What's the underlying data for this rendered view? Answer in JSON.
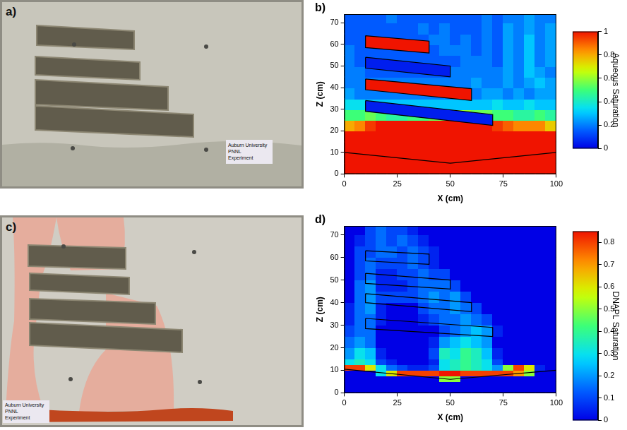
{
  "photos": [
    {
      "letter": "a)",
      "caption": [
        "Auburn University",
        "PNNL",
        "Experiment"
      ]
    },
    {
      "letter": "c)",
      "caption": [
        "Auburn University",
        "PNNL",
        "Experiment"
      ]
    }
  ],
  "chart_data": [
    {
      "type": "heatmap",
      "letter": "b)",
      "x_label": "X (cm)",
      "y_label": "Z (cm)",
      "xlim": [
        0,
        100
      ],
      "xticks": [
        0,
        25,
        50,
        75,
        100
      ],
      "ylim": [
        0,
        74
      ],
      "yticks": [
        0,
        10,
        20,
        30,
        40,
        50,
        60,
        70
      ],
      "colorbar": {
        "label": "Aqueous Saturation",
        "range": [
          0,
          1
        ],
        "ticks": [
          0,
          0.2,
          0.4,
          0.6,
          0.8,
          1
        ]
      },
      "cells": {
        "x_edges": [
          0,
          5,
          10,
          15,
          20,
          25,
          30,
          35,
          40,
          45,
          50,
          55,
          60,
          65,
          70,
          75,
          80,
          85,
          90,
          95,
          100
        ],
        "z_edges": [
          0,
          5,
          10,
          15,
          20,
          25,
          30,
          35,
          40,
          45,
          50,
          55,
          60,
          65,
          70,
          75
        ],
        "values": [
          [
            1,
            1,
            1,
            1,
            1,
            1,
            1,
            1,
            1,
            1,
            1,
            1,
            1,
            1,
            1,
            1,
            1,
            1,
            1,
            1
          ],
          [
            1,
            1,
            1,
            1,
            1,
            1,
            1,
            1,
            1,
            1,
            1,
            1,
            1,
            1,
            1,
            1,
            1,
            1,
            1,
            1
          ],
          [
            1,
            1,
            1,
            1,
            1,
            1,
            1,
            1,
            1,
            1,
            1,
            1,
            1,
            1,
            1,
            1,
            1,
            1,
            1,
            1
          ],
          [
            1,
            1,
            1,
            1,
            1,
            1,
            1,
            1,
            1,
            1,
            1,
            1,
            1,
            1,
            1,
            1,
            1,
            1,
            1,
            1
          ],
          [
            0.8,
            0.85,
            0.95,
            1,
            1,
            1,
            1,
            1,
            1,
            1,
            1,
            1,
            1,
            1,
            0.95,
            0.9,
            0.85,
            0.85,
            0.85,
            0.75
          ],
          [
            0.5,
            0.5,
            0.55,
            0.5,
            0.45,
            0.45,
            0.5,
            0.5,
            0.55,
            0.55,
            0.6,
            0.6,
            0.55,
            0.55,
            0.5,
            0.5,
            0.45,
            0.45,
            0.5,
            0.45
          ],
          [
            0.35,
            0.35,
            0.3,
            0.3,
            0.3,
            0.3,
            0.3,
            0.3,
            0.3,
            0.3,
            0.3,
            0.3,
            0.3,
            0.3,
            0.35,
            0.3,
            0.3,
            0.35,
            0.3,
            0.3
          ],
          [
            0.25,
            0.2,
            0.2,
            0.2,
            0.2,
            0.2,
            0.2,
            0.2,
            0.2,
            0.2,
            0.2,
            0.2,
            0.2,
            0.25,
            0.25,
            0.2,
            0.25,
            0.2,
            0.25,
            0.25
          ],
          [
            0.2,
            0.2,
            0.2,
            0.2,
            0.2,
            0.2,
            0.2,
            0.2,
            0.2,
            0.2,
            0.2,
            0.2,
            0.25,
            0.2,
            0.2,
            0.25,
            0.2,
            0.25,
            0.3,
            0.25
          ],
          [
            0.2,
            0.2,
            0.15,
            0.15,
            0.15,
            0.15,
            0.15,
            0.15,
            0.15,
            0.15,
            0.2,
            0.2,
            0.2,
            0.2,
            0.2,
            0.25,
            0.2,
            0.3,
            0.25,
            0.2
          ],
          [
            0.2,
            0.15,
            0.15,
            0.15,
            0.15,
            0.15,
            0.15,
            0.15,
            0.15,
            0.15,
            0.15,
            0.2,
            0.2,
            0.2,
            0.15,
            0.25,
            0.2,
            0.3,
            0.2,
            0.25
          ],
          [
            0.2,
            0.15,
            0.15,
            0.15,
            0.15,
            0.15,
            0.15,
            0.15,
            0.15,
            0.2,
            0.2,
            0.2,
            0.15,
            0.2,
            0.15,
            0.25,
            0.2,
            0.3,
            0.2,
            0.25
          ],
          [
            0.15,
            0.15,
            0.15,
            0.15,
            0.15,
            0.15,
            0.15,
            0.15,
            0.2,
            0.2,
            0.15,
            0.2,
            0.15,
            0.2,
            0.15,
            0.25,
            0.2,
            0.3,
            0.2,
            0.25
          ],
          [
            0.15,
            0.15,
            0.15,
            0.15,
            0.15,
            0.15,
            0.15,
            0.2,
            0.15,
            0.2,
            0.15,
            0.15,
            0.15,
            0.2,
            0.15,
            0.25,
            0.2,
            0.25,
            0.2,
            0.25
          ],
          [
            0.15,
            0.15,
            0.15,
            0.15,
            0.2,
            0.15,
            0.15,
            0.15,
            0.15,
            0.15,
            0.15,
            0.15,
            0.15,
            0.2,
            0.15,
            0.2,
            0.2,
            0.25,
            0.2,
            0.2
          ]
        ]
      },
      "lenses": [
        {
          "outline": [
            [
              10,
              64
            ],
            [
              40,
              61.5
            ],
            [
              40,
              56
            ],
            [
              10,
              58.5
            ]
          ],
          "value": 1
        },
        {
          "outline": [
            [
              10,
              54
            ],
            [
              50,
              50
            ],
            [
              50,
              45
            ],
            [
              10,
              49
            ]
          ],
          "value": 0.05
        },
        {
          "outline": [
            [
              10,
              44
            ],
            [
              60,
              39.5
            ],
            [
              60,
              34
            ],
            [
              10,
              39
            ]
          ],
          "value": 1
        },
        {
          "outline": [
            [
              10,
              34
            ],
            [
              70,
              27.5
            ],
            [
              70,
              22.5
            ],
            [
              10,
              29
            ]
          ],
          "value": 0.05
        }
      ],
      "bottom_line": [
        [
          0,
          10
        ],
        [
          50,
          5
        ],
        [
          100,
          10
        ]
      ]
    },
    {
      "type": "heatmap",
      "letter": "d)",
      "x_label": "X (cm)",
      "y_label": "Z (cm)",
      "xlim": [
        0,
        100
      ],
      "xticks": [
        0,
        25,
        50,
        75,
        100
      ],
      "ylim": [
        0,
        74
      ],
      "yticks": [
        0,
        10,
        20,
        30,
        40,
        50,
        60,
        70
      ],
      "colorbar": {
        "label": "DNAPL Saturation",
        "range": [
          0,
          0.85
        ],
        "ticks": [
          0,
          0.1,
          0.2,
          0.3,
          0.4,
          0.5,
          0.6,
          0.7,
          0.8
        ]
      },
      "cells": {
        "x_edges": [
          0,
          5,
          10,
          15,
          20,
          25,
          30,
          35,
          40,
          45,
          50,
          55,
          60,
          65,
          70,
          75,
          80,
          85,
          90,
          95,
          100
        ],
        "z_edges": [
          0,
          5,
          7.5,
          10,
          12.5,
          15,
          20,
          25,
          30,
          35,
          40,
          45,
          50,
          55,
          60,
          65,
          70,
          75
        ],
        "values": [
          [
            0,
            0,
            0,
            0,
            0,
            0,
            0,
            0,
            0,
            0,
            0,
            0,
            0,
            0,
            0,
            0,
            0,
            0,
            0,
            0
          ],
          [
            0,
            0,
            0,
            0,
            0,
            0,
            0,
            0,
            0,
            0.5,
            0.5,
            0,
            0,
            0,
            0,
            0,
            0,
            0,
            0,
            0
          ],
          [
            0,
            0,
            0,
            0.3,
            0.6,
            0.8,
            0.8,
            0.8,
            0.8,
            0.85,
            0.85,
            0.8,
            0.8,
            0.8,
            0.8,
            0.8,
            0.7,
            0.5,
            0,
            0
          ],
          [
            0.8,
            0.8,
            0.6,
            0.3,
            0.15,
            0.1,
            0.05,
            0.05,
            0.1,
            0.3,
            0.35,
            0.4,
            0.35,
            0.3,
            0.2,
            0.5,
            0.8,
            0.6,
            0.05,
            0
          ],
          [
            0.3,
            0.35,
            0.3,
            0.1,
            0.05,
            0,
            0,
            0,
            0.05,
            0.3,
            0.35,
            0.4,
            0.35,
            0.3,
            0.1,
            0,
            0,
            0,
            0,
            0
          ],
          [
            0.2,
            0.3,
            0.25,
            0.05,
            0,
            0,
            0,
            0,
            0.1,
            0.35,
            0.3,
            0.4,
            0.35,
            0.25,
            0.05,
            0,
            0,
            0,
            0,
            0
          ],
          [
            0.15,
            0.2,
            0.15,
            0,
            0,
            0,
            0,
            0,
            0.05,
            0.2,
            0.25,
            0.3,
            0.25,
            0.2,
            0,
            0,
            0,
            0,
            0,
            0
          ],
          [
            0.1,
            0.15,
            0.15,
            0,
            0,
            0,
            0,
            0,
            0,
            0.1,
            0.15,
            0.2,
            0.25,
            0.2,
            0.05,
            0,
            0,
            0,
            0,
            0
          ],
          [
            0.05,
            0.15,
            0.15,
            0.05,
            0,
            0,
            0,
            0.05,
            0.1,
            0.15,
            0.15,
            0.2,
            0.15,
            0.1,
            0,
            0,
            0,
            0,
            0,
            0
          ],
          [
            0.05,
            0.15,
            0.2,
            0.05,
            0,
            0,
            0,
            0.1,
            0.15,
            0.15,
            0.2,
            0.15,
            0.1,
            0,
            0,
            0,
            0,
            0,
            0,
            0
          ],
          [
            0,
            0.15,
            0.2,
            0.1,
            0.1,
            0.1,
            0.1,
            0.15,
            0.2,
            0.15,
            0.2,
            0.1,
            0,
            0,
            0,
            0,
            0,
            0,
            0,
            0
          ],
          [
            0,
            0.15,
            0.2,
            0.05,
            0.05,
            0.05,
            0.1,
            0.15,
            0.15,
            0.15,
            0.1,
            0,
            0,
            0,
            0,
            0,
            0,
            0,
            0,
            0
          ],
          [
            0,
            0.1,
            0.15,
            0.05,
            0.05,
            0.1,
            0.1,
            0.15,
            0.1,
            0.1,
            0,
            0,
            0,
            0,
            0,
            0,
            0,
            0,
            0,
            0
          ],
          [
            0,
            0.1,
            0.15,
            0.1,
            0.1,
            0.1,
            0.15,
            0.1,
            0.05,
            0,
            0,
            0,
            0,
            0,
            0,
            0,
            0,
            0,
            0,
            0
          ],
          [
            0,
            0.1,
            0.1,
            0.15,
            0.15,
            0.1,
            0.15,
            0.1,
            0.05,
            0,
            0,
            0,
            0,
            0,
            0,
            0,
            0,
            0,
            0,
            0
          ],
          [
            0,
            0.05,
            0.1,
            0.15,
            0.1,
            0.15,
            0.1,
            0.05,
            0,
            0,
            0,
            0,
            0,
            0,
            0,
            0,
            0,
            0,
            0,
            0
          ],
          [
            0,
            0,
            0.1,
            0.15,
            0.1,
            0.1,
            0.05,
            0,
            0,
            0,
            0,
            0,
            0,
            0,
            0,
            0,
            0,
            0,
            0,
            0
          ]
        ]
      },
      "lenses": [
        {
          "outline": [
            [
              10,
              63
            ],
            [
              40,
              61.5
            ],
            [
              40,
              57
            ],
            [
              10,
              58.5
            ]
          ]
        },
        {
          "outline": [
            [
              10,
              53
            ],
            [
              50,
              50
            ],
            [
              50,
              46
            ],
            [
              10,
              48.5
            ]
          ]
        },
        {
          "outline": [
            [
              10,
              44
            ],
            [
              60,
              40
            ],
            [
              60,
              36
            ],
            [
              10,
              40
            ]
          ]
        },
        {
          "outline": [
            [
              10,
              33
            ],
            [
              70,
              29
            ],
            [
              70,
              25
            ],
            [
              10,
              28.5
            ]
          ]
        }
      ],
      "bottom_line": [
        [
          0,
          10.5
        ],
        [
          50,
          6
        ],
        [
          100,
          10
        ]
      ]
    }
  ]
}
